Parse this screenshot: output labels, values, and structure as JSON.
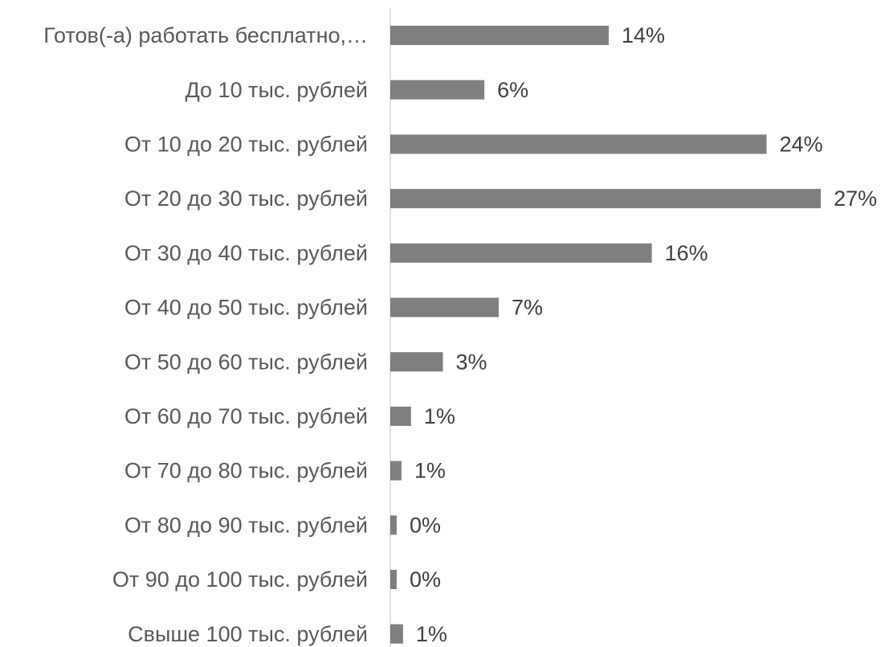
{
  "chart_data": {
    "type": "bar",
    "orientation": "horizontal",
    "categories": [
      "Готов(-а) работать бесплатно,…",
      "До 10 тыс. рублей",
      "От 10 до 20 тыс. рублей",
      "От 20 до 30 тыс. рублей",
      "От 30 до 40 тыс. рублей",
      "От 40 до 50 тыс. рублей",
      "От 50 до 60 тыс. рублей",
      "От 60 до 70 тыс. рублей",
      "От 70 до 80 тыс. рублей",
      "От 80 до 90 тыс. рублей",
      "От 90 до 100 тыс. рублей",
      "Свыше 100 тыс. рублей"
    ],
    "values": [
      13.7,
      5.9,
      23.6,
      27,
      16.4,
      6.8,
      3.3,
      1.3,
      0.7,
      0.4,
      0.4,
      0.8
    ],
    "value_labels": [
      "14%",
      "6%",
      "24%",
      "27%",
      "16%",
      "7%",
      "3%",
      "1%",
      "1%",
      "0%",
      "0%",
      "1%"
    ],
    "color": "#7f7f7f",
    "xlim": [
      0,
      27.5
    ]
  }
}
